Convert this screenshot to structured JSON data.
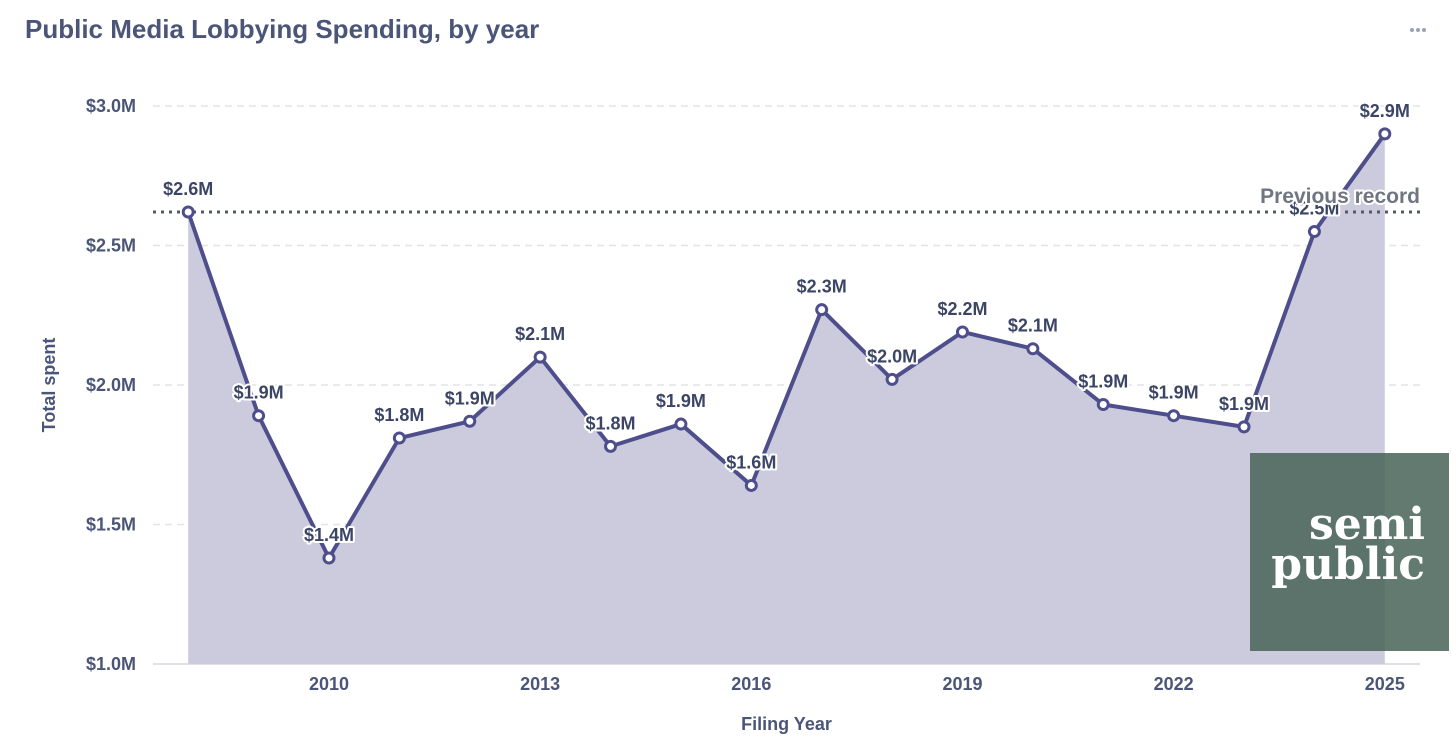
{
  "header": {
    "title": "Public Media Lobbying Spending, by year",
    "more_icon": "more-horizontal-icon"
  },
  "watermark": {
    "line1": "semi",
    "line2": "public",
    "color": "#486458"
  },
  "colors": {
    "line": "#4e4e8c",
    "area": "#cbcbdd",
    "grid": "#e3e4e8",
    "reference": "#555a66"
  },
  "chart_data": {
    "type": "area",
    "title": "Public Media Lobbying Spending, by year",
    "xlabel": "Filing Year",
    "ylabel": "Total spent",
    "x": [
      2008,
      2009,
      2010,
      2011,
      2012,
      2013,
      2014,
      2015,
      2016,
      2017,
      2018,
      2019,
      2020,
      2021,
      2022,
      2023,
      2024,
      2025
    ],
    "series": [
      {
        "name": "Total spent",
        "values": [
          2.62,
          1.89,
          1.38,
          1.81,
          1.87,
          2.1,
          1.78,
          1.86,
          1.64,
          2.27,
          2.02,
          2.19,
          2.13,
          1.93,
          1.89,
          1.85,
          2.55,
          2.9
        ]
      }
    ],
    "data_labels": [
      "$2.6M",
      "$1.9M",
      "$1.4M",
      "$1.8M",
      "$1.9M",
      "$2.1M",
      "$1.8M",
      "$1.9M",
      "$1.6M",
      "$2.3M",
      "$2.0M",
      "$2.2M",
      "$2.1M",
      "$1.9M",
      "$1.9M",
      "$1.9M",
      "$2.5M",
      "$2.9M"
    ],
    "ylim": [
      1.0,
      3.0
    ],
    "yticks": [
      1.0,
      1.5,
      2.0,
      2.5,
      3.0
    ],
    "ytick_labels": [
      "$1.0M",
      "$1.5M",
      "$2.0M",
      "$2.5M",
      "$3.0M"
    ],
    "xlim": [
      2007.5,
      2025.5
    ],
    "xticks": [
      2010,
      2013,
      2016,
      2019,
      2022,
      2025
    ],
    "xtick_labels": [
      "2010",
      "2013",
      "2016",
      "2019",
      "2022",
      "2025"
    ],
    "grid": true,
    "reference_line": {
      "value": 2.62,
      "label": "Previous record",
      "style": "dotted"
    },
    "units": "USD millions"
  }
}
